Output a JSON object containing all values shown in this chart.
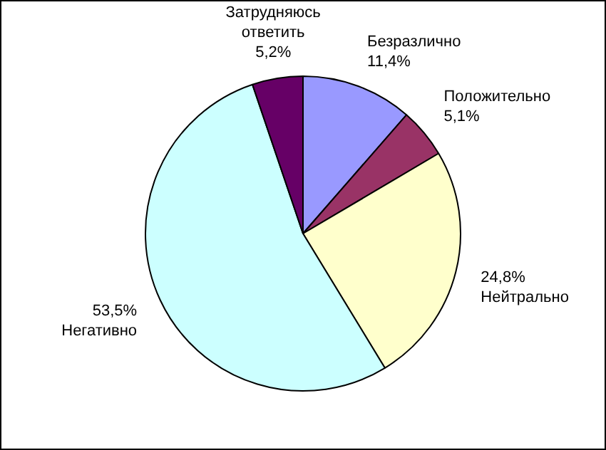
{
  "chart_data": {
    "type": "pie",
    "categories": [
      "Безразлично",
      "Положительно",
      "Нейтрально",
      "Негативно",
      "Затрудняюсь ответить"
    ],
    "values": [
      11.4,
      5.1,
      24.8,
      53.5,
      5.2
    ],
    "value_labels": [
      "11,4%",
      "5,1%",
      "24,8%",
      "53,5%",
      "5,2%"
    ],
    "colors": [
      "#9999ff",
      "#993366",
      "#ffffcc",
      "#ccffff",
      "#660066"
    ],
    "legend": false
  }
}
